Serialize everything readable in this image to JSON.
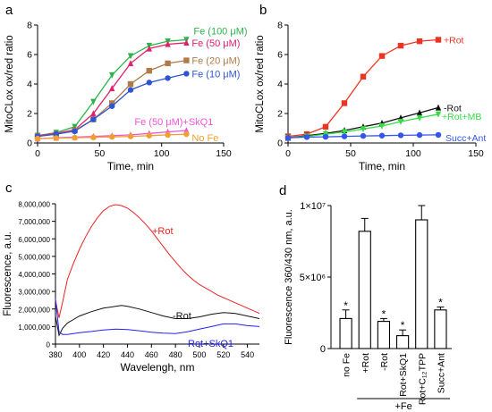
{
  "panels": {
    "a": "a",
    "b": "b",
    "c": "c",
    "d": "d"
  },
  "chart_data": [
    {
      "panel": "a",
      "type": "line",
      "xlabel": "Time, min",
      "ylabel": "MitoCLox ox/red ratio",
      "xlim": [
        0,
        150
      ],
      "ylim": [
        0,
        8
      ],
      "xticks": [
        "0",
        "50",
        "100",
        "150"
      ],
      "yticks": [
        "0",
        "2",
        "4",
        "6",
        "8"
      ],
      "grid": false,
      "series": [
        {
          "name": "Fe (100  μM)",
          "color": "#2db34a",
          "marker": "triangle-down",
          "x": [
            0,
            15,
            30,
            45,
            60,
            75,
            90,
            105,
            120
          ],
          "y": [
            0.5,
            0.7,
            1.1,
            2.8,
            4.6,
            5.9,
            6.6,
            6.9,
            7.0
          ]
        },
        {
          "name": "Fe (50 μM)",
          "color": "#e0206a",
          "marker": "triangle-up",
          "x": [
            0,
            15,
            30,
            45,
            60,
            75,
            90,
            105,
            120
          ],
          "y": [
            0.5,
            0.65,
            0.9,
            2.0,
            3.7,
            5.4,
            6.4,
            6.7,
            6.8
          ]
        },
        {
          "name": "Fe (20 μM)",
          "color": "#b07a4a",
          "marker": "square",
          "x": [
            0,
            15,
            30,
            45,
            60,
            75,
            90,
            105,
            120
          ],
          "y": [
            0.45,
            0.6,
            0.85,
            1.6,
            2.7,
            4.0,
            4.9,
            5.4,
            5.6
          ]
        },
        {
          "name": "Fe (10 μM)",
          "color": "#2e55d4",
          "marker": "circle",
          "x": [
            0,
            15,
            30,
            45,
            60,
            75,
            90,
            105,
            120
          ],
          "y": [
            0.45,
            0.6,
            0.8,
            1.6,
            2.5,
            3.6,
            4.1,
            4.4,
            4.7
          ]
        },
        {
          "name": "Fe (50 μM)+SkQ1",
          "color": "#ee55d8",
          "marker": "triangle-up",
          "x": [
            0,
            15,
            30,
            45,
            60,
            75,
            90,
            105,
            120
          ],
          "y": [
            0.3,
            0.35,
            0.4,
            0.45,
            0.5,
            0.55,
            0.65,
            0.75,
            0.85
          ]
        },
        {
          "name": "No Fe",
          "color": "#f0a030",
          "marker": "circle",
          "x": [
            0,
            15,
            30,
            45,
            60,
            75,
            90,
            105,
            120
          ],
          "y": [
            0.3,
            0.33,
            0.36,
            0.38,
            0.42,
            0.45,
            0.5,
            0.55,
            0.6
          ]
        }
      ]
    },
    {
      "panel": "b",
      "type": "line",
      "xlabel": "Time, min",
      "ylabel": "MitoCLox ox/red ratio",
      "xlim": [
        0,
        150
      ],
      "ylim": [
        0,
        8
      ],
      "xticks": [
        "0",
        "50",
        "100",
        "150"
      ],
      "yticks": [
        "0",
        "2",
        "4",
        "6",
        "8"
      ],
      "grid": false,
      "series": [
        {
          "name": "+Rot",
          "color": "#ee3322",
          "marker": "square",
          "x": [
            0,
            15,
            30,
            45,
            60,
            75,
            90,
            105,
            120
          ],
          "y": [
            0.45,
            0.6,
            1.1,
            2.7,
            4.5,
            5.9,
            6.6,
            6.9,
            7.0
          ]
        },
        {
          "name": "-Rot",
          "color": "#111111",
          "marker": "triangle-up",
          "x": [
            0,
            15,
            30,
            45,
            60,
            75,
            90,
            105,
            120
          ],
          "y": [
            0.35,
            0.5,
            0.65,
            0.85,
            1.1,
            1.35,
            1.7,
            2.05,
            2.4
          ]
        },
        {
          "name": "+Rot+MB",
          "color": "#33dd44",
          "marker": "triangle-down",
          "x": [
            0,
            15,
            30,
            45,
            60,
            75,
            90,
            105,
            120
          ],
          "y": [
            0.35,
            0.45,
            0.6,
            0.75,
            0.95,
            1.15,
            1.45,
            1.7,
            1.95
          ]
        },
        {
          "name": "Succ+Ant",
          "color": "#3355ee",
          "marker": "circle",
          "x": [
            0,
            15,
            30,
            45,
            60,
            75,
            90,
            105,
            120
          ],
          "y": [
            0.35,
            0.4,
            0.42,
            0.45,
            0.48,
            0.5,
            0.52,
            0.54,
            0.55
          ]
        }
      ]
    },
    {
      "panel": "c",
      "type": "line",
      "xlabel": "Wavelengh, nm",
      "ylabel": "Fluorescence, a.u.",
      "xlim": [
        380,
        550
      ],
      "ylim": [
        0,
        8000000
      ],
      "xticks": [
        "380",
        "400",
        "420",
        "440",
        "460",
        "480",
        "500",
        "520",
        "540"
      ],
      "yticks": [
        "0",
        "1,000,000",
        "2,000,000",
        "3,000,000",
        "4,000,000",
        "5,000,000",
        "6,000,000",
        "7,000,000",
        "8,000,000"
      ],
      "grid": false,
      "series": [
        {
          "name": "+Rot",
          "color": "#ee2222",
          "x": [
            380,
            383,
            386,
            390,
            395,
            400,
            405,
            410,
            415,
            420,
            425,
            430,
            435,
            440,
            445,
            450,
            455,
            460,
            465,
            470,
            475,
            480,
            485,
            490,
            495,
            500,
            505,
            510,
            515,
            520,
            525,
            530,
            535,
            540,
            545,
            550
          ],
          "y": [
            2500000,
            1500000,
            2400000,
            3700000,
            4600000,
            5400000,
            6100000,
            6700000,
            7200000,
            7600000,
            7850000,
            7950000,
            7900000,
            7750000,
            7500000,
            7200000,
            6850000,
            6450000,
            6000000,
            5550000,
            5100000,
            4700000,
            4300000,
            3950000,
            3650000,
            3400000,
            3200000,
            3000000,
            2800000,
            2650000,
            2500000,
            2350000,
            2200000,
            2050000,
            1900000,
            1750000
          ]
        },
        {
          "name": "-Rot",
          "color": "#111111",
          "x": [
            380,
            383,
            386,
            390,
            395,
            400,
            410,
            420,
            430,
            435,
            440,
            450,
            460,
            470,
            480,
            490,
            500,
            510,
            520,
            530,
            540,
            550
          ],
          "y": [
            1600000,
            500000,
            900000,
            1200000,
            1400000,
            1600000,
            1850000,
            2050000,
            2150000,
            2200000,
            2150000,
            2000000,
            1800000,
            1600000,
            1450000,
            1450000,
            1550000,
            1700000,
            1800000,
            1750000,
            1600000,
            1450000
          ]
        },
        {
          "name": "Rot+SkQ1",
          "color": "#2222ee",
          "x": [
            380,
            383,
            386,
            390,
            395,
            400,
            410,
            420,
            430,
            440,
            450,
            460,
            470,
            480,
            490,
            500,
            510,
            520,
            530,
            540,
            550
          ],
          "y": [
            2600000,
            700000,
            550000,
            550000,
            600000,
            650000,
            720000,
            800000,
            850000,
            830000,
            760000,
            680000,
            620000,
            600000,
            700000,
            850000,
            1000000,
            1150000,
            1150000,
            1050000,
            1000000
          ]
        }
      ]
    },
    {
      "panel": "d",
      "type": "bar",
      "ylabel": "Fluorescence 360/430 nm, a.u.",
      "ylim": [
        0,
        10000000
      ],
      "yticks": [
        "0",
        "5×10⁶",
        "1×10⁷"
      ],
      "grid": false,
      "group_label": "+Fe",
      "categories": [
        "no Fe",
        "+Rot",
        "-Rot",
        "Rot+SkQ1",
        "Rot+C₁₂TPP",
        "Succ+Ant"
      ],
      "values": [
        2100000,
        8200000,
        1900000,
        900000,
        9000000,
        2700000
      ],
      "errors": [
        600000,
        900000,
        200000,
        400000,
        1000000,
        200000
      ],
      "significance": [
        "*",
        "",
        "*",
        "*",
        "",
        "*"
      ]
    }
  ]
}
